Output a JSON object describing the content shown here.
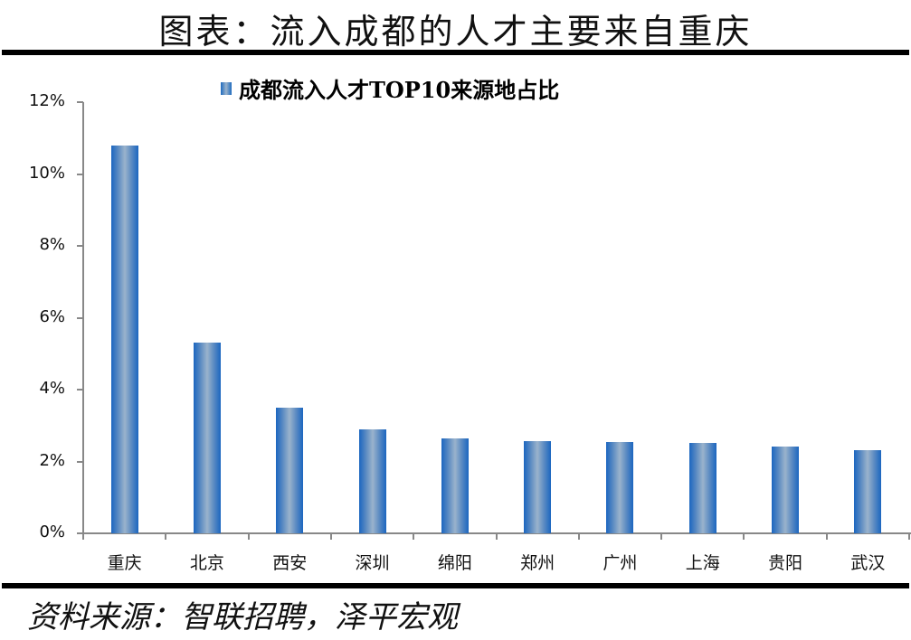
{
  "header": {
    "title": "图表：流入成都的人才主要来自重庆"
  },
  "footer": {
    "source": "资料来源：智联招聘，泽平宏观"
  },
  "chart_data": {
    "type": "bar",
    "title": "",
    "legend": [
      "成都流入人才TOP10来源地占比"
    ],
    "legend_position": "top",
    "categories": [
      "重庆",
      "北京",
      "西安",
      "深圳",
      "绵阳",
      "郑州",
      "广州",
      "上海",
      "贵阳",
      "武汉"
    ],
    "series": [
      {
        "name": "成都流入人才TOP10来源地占比",
        "values": [
          10.8,
          5.3,
          3.5,
          2.9,
          2.65,
          2.57,
          2.55,
          2.52,
          2.42,
          2.32
        ],
        "color": "#1f6bbf"
      }
    ],
    "xlabel": "",
    "ylabel": "",
    "ylim": [
      0,
      12
    ],
    "yticks": [
      "0%",
      "2%",
      "4%",
      "6%",
      "8%",
      "10%",
      "12%"
    ],
    "grid": false
  }
}
